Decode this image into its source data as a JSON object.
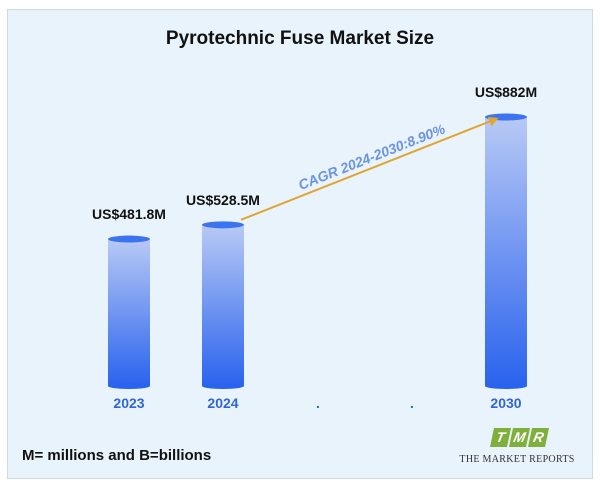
{
  "chart_data": {
    "type": "bar",
    "title": "Pyrotechnic Fuse Market Size",
    "categories": [
      "2023",
      "2024",
      ".",
      ".",
      "2030"
    ],
    "values": [
      481.8,
      528.5,
      null,
      null,
      882
    ],
    "value_labels": [
      "US$481.8M",
      "US$528.5M",
      "",
      "",
      "US$882M"
    ],
    "ylim": [
      0,
      882
    ],
    "grid": false,
    "annotation": {
      "text": "CAGR 2024-2030:8.90%",
      "from_category": "2024",
      "to_category": "2030"
    },
    "colors": {
      "bar_top": "#b8c9f5",
      "bar_bottom": "#2a63ee",
      "bar_cap": "#3b74ee",
      "arrow": "#e0a530",
      "category_label": "#2f66d6",
      "cagr_text": "#6b93e3",
      "value_label": "#111111"
    }
  },
  "footnote": "M= millions and B=billions",
  "logo": {
    "letters": [
      "T",
      "M",
      "R"
    ],
    "name": "THE MARKET REPORTS",
    "color": "#7fb03c"
  }
}
